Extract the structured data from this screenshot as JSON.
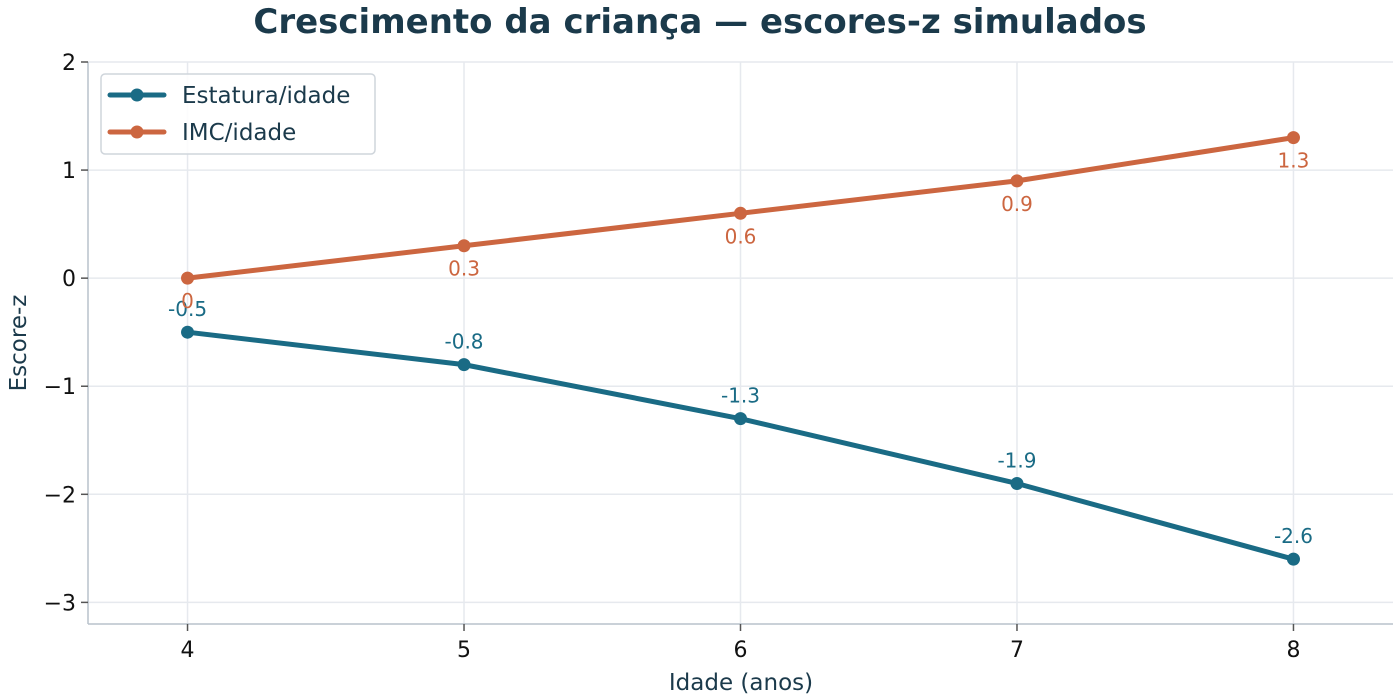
{
  "chart_data": {
    "type": "line",
    "title": "Crescimento da criança — escores-z simulados",
    "xlabel": "Idade (anos)",
    "ylabel": "Escore-z",
    "x": [
      4,
      5,
      6,
      7,
      8
    ],
    "xlim": [
      3.64,
      8.36
    ],
    "ylim": [
      -3.2,
      2.0
    ],
    "x_ticks": [
      4,
      5,
      6,
      7,
      8
    ],
    "y_ticks": [
      -3,
      -2,
      -1,
      0,
      1,
      2
    ],
    "y_tick_labels": [
      "−3",
      "−2",
      "−1",
      "0",
      "1",
      "2"
    ],
    "grid": true,
    "legend_position": "top-left",
    "series": [
      {
        "name": "Estatura/idade",
        "color": "#1a6b85",
        "values": [
          -0.5,
          -0.8,
          -1.3,
          -1.9,
          -2.6
        ],
        "labels": [
          "-0.5",
          "-0.8",
          "-1.3",
          "-1.9",
          "-2.6"
        ],
        "label_position": "above"
      },
      {
        "name": "IMC/idade",
        "color": "#cc6640",
        "values": [
          0.0,
          0.3,
          0.6,
          0.9,
          1.3
        ],
        "labels": [
          "0",
          "0.3",
          "0.6",
          "0.9",
          "1.3"
        ],
        "label_position": "below"
      }
    ]
  }
}
